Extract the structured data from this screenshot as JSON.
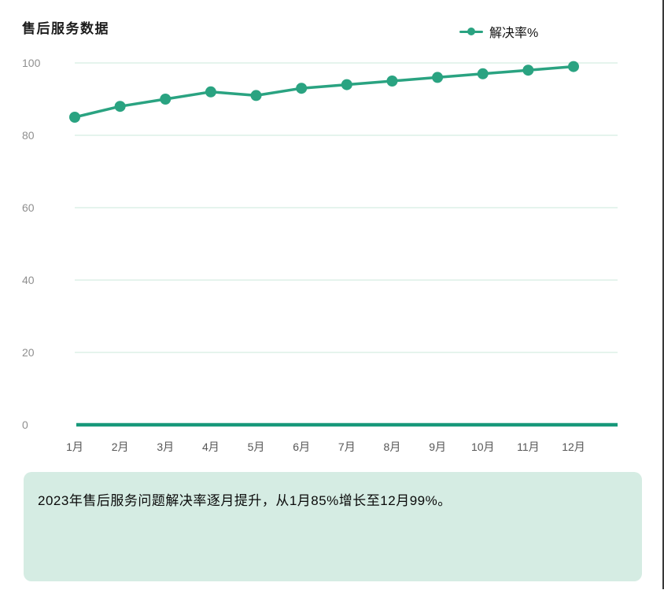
{
  "header": {
    "title": "售后服务数据"
  },
  "legend": {
    "items": [
      {
        "label": "解决率%"
      }
    ]
  },
  "chart_data": {
    "type": "line",
    "title": "售后服务数据",
    "categories": [
      "1月",
      "2月",
      "3月",
      "4月",
      "5月",
      "6月",
      "7月",
      "8月",
      "9月",
      "10月",
      "11月",
      "12月"
    ],
    "series": [
      {
        "name": "解决率%",
        "values": [
          85,
          88,
          90,
          92,
          91,
          93,
          94,
          95,
          96,
          97,
          98,
          99
        ]
      }
    ],
    "xlabel": "",
    "ylabel": "",
    "ylim": [
      0,
      100
    ],
    "yticks": [
      0,
      20,
      40,
      60,
      80,
      100
    ],
    "grid": true,
    "legend_position": "top-right"
  },
  "note": {
    "text": "2023年售后服务问题解决率逐月提升，从1月85%增长至12月99%。"
  },
  "colors": {
    "series": "#2aa381",
    "zero_axis": "#17987a",
    "gridline": "#cbe8db",
    "y_tick_label": "#8f8f8f",
    "x_tick_label": "#565656",
    "note_bg": "#d5ece3",
    "note_text": "#0a0a0a",
    "window_border": "#383838"
  }
}
